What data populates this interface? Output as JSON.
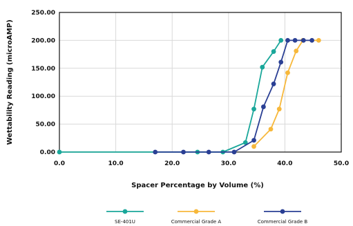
{
  "chart_data": {
    "type": "line",
    "xlabel": "Spacer Percentage by Volume (%)",
    "ylabel": "Wettability Reading (microAMP)",
    "xlim": [
      0,
      50
    ],
    "ylim": [
      0,
      250
    ],
    "x_ticks": [
      "0.0",
      "10.0",
      "20.0",
      "30.0",
      "40.0",
      "50.0"
    ],
    "y_ticks": [
      "0.00",
      "50.00",
      "100.00",
      "150.00",
      "200.00",
      "250.00"
    ],
    "grid": true,
    "legend_position": "bottom",
    "series": [
      {
        "name": "SE-401U",
        "color": "#1aa79a",
        "points": [
          [
            0,
            0
          ],
          [
            24.5,
            0
          ],
          [
            29,
            0
          ],
          [
            33,
            17
          ],
          [
            34.5,
            77
          ],
          [
            36,
            152
          ],
          [
            38,
            180
          ],
          [
            39.3,
            200
          ]
        ]
      },
      {
        "name": "Commercial Grade A",
        "color": "#f7b83b",
        "points": [
          [
            34.5,
            10
          ],
          [
            37.5,
            41
          ],
          [
            39,
            77
          ],
          [
            40.5,
            142
          ],
          [
            42,
            181
          ],
          [
            43.2,
            200
          ],
          [
            46,
            200
          ]
        ]
      },
      {
        "name": "Commercial Grade B",
        "color": "#2a3f94",
        "points": [
          [
            17,
            0
          ],
          [
            22,
            0
          ],
          [
            26.5,
            0
          ],
          [
            31,
            0
          ],
          [
            34.5,
            21
          ],
          [
            36.2,
            81
          ],
          [
            38,
            122
          ],
          [
            39.3,
            161
          ],
          [
            40.5,
            200
          ],
          [
            41.8,
            200
          ],
          [
            43.3,
            200
          ],
          [
            44.8,
            200
          ]
        ]
      }
    ]
  }
}
